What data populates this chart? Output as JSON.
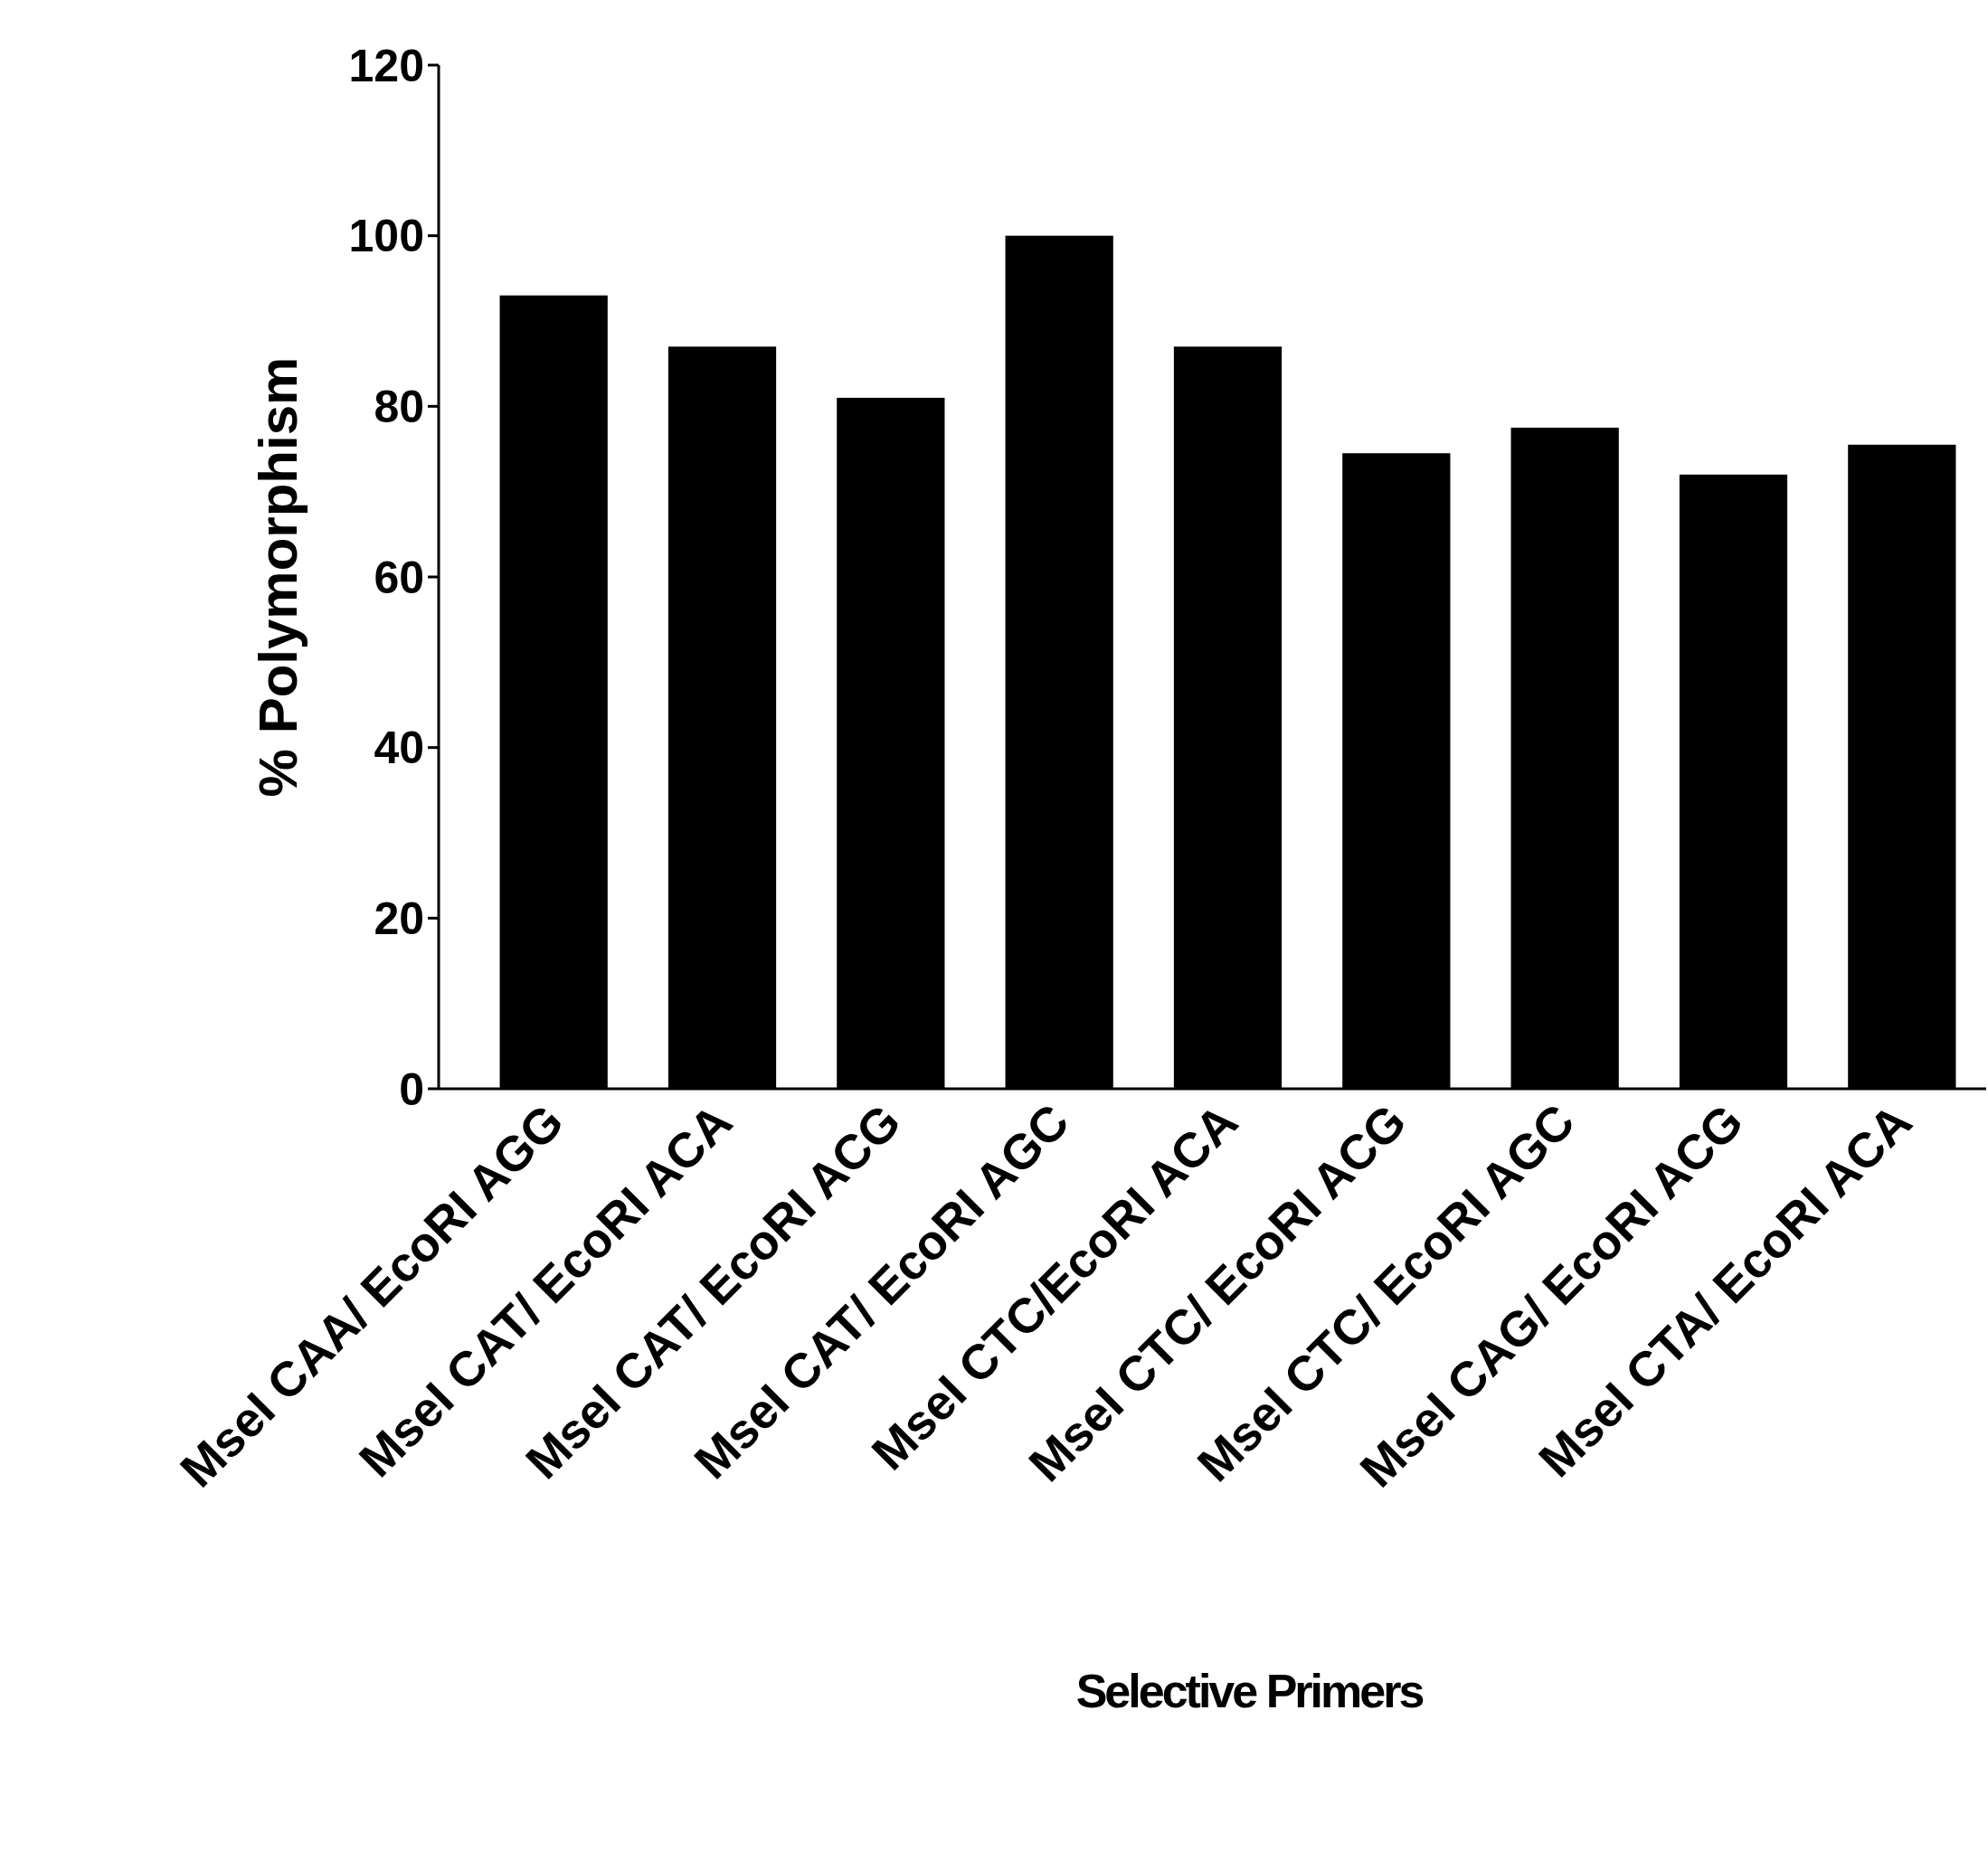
{
  "chart_data": {
    "type": "bar",
    "xlabel": "Selective Primers",
    "ylabel": "% Polymorphism",
    "categories": [
      "MseI CAA/ EcoRI AGG",
      "MseI CAT/ EcoRI ACA",
      "MseI CAT/ EcoRI ACG",
      "MseI CAT/ EcoRI AGC",
      "MseI CTC/EcoRI ACA",
      "MseI CTC/ EcoRI ACG",
      "MseI CTC/ EcoRI AGC",
      "MseI CAG/ EcoRI ACG",
      "MseI CTA/ EcoRI ACA"
    ],
    "values": [
      93,
      87,
      81,
      100,
      87,
      74.5,
      77.5,
      72,
      75.5
    ],
    "color": "#000000",
    "ylim": [
      0,
      120
    ],
    "yticks": [
      0,
      20,
      40,
      60,
      80,
      100,
      120
    ],
    "grid": false
  }
}
